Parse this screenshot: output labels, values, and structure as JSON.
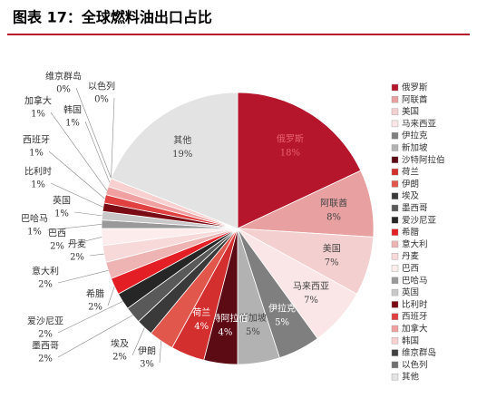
{
  "chart_data": {
    "type": "pie",
    "title": "图表 17：全球燃料油出口占比",
    "categories": [
      "俄罗斯",
      "阿联酋",
      "美国",
      "马来西亚",
      "伊拉克",
      "新加坡",
      "沙特阿拉伯",
      "荷兰",
      "伊朗",
      "埃及",
      "墨西哥",
      "爱沙尼亚",
      "希腊",
      "意大利",
      "丹麦",
      "巴西",
      "巴哈马",
      "英国",
      "比利时",
      "西班牙",
      "加拿大",
      "韩国",
      "维京群岛",
      "以色列",
      "其他"
    ],
    "values": [
      18,
      8,
      7,
      7,
      5,
      5,
      4,
      4,
      3,
      2,
      2,
      2,
      2,
      2,
      2,
      2,
      1,
      1,
      1,
      1,
      1,
      1,
      0,
      0,
      19
    ],
    "value_labels": [
      "18%",
      "8%",
      "7%",
      "7%",
      "5%",
      "5%",
      "4%",
      "4%",
      "3%",
      "2%",
      "2%",
      "2%",
      "2%",
      "2%",
      "2%",
      "2%",
      "1%",
      "1%",
      "1%",
      "1%",
      "1%",
      "1%",
      "0%",
      "0%",
      "19%"
    ],
    "colors": [
      "#b5162b",
      "#e8a0a0",
      "#f4cfcf",
      "#fae6e6",
      "#7f7f7f",
      "#b2b2b2",
      "#5c0a14",
      "#d32f2f",
      "#e2574c",
      "#3a3a3a",
      "#595959",
      "#262626",
      "#e31e24",
      "#eeb4b4",
      "#f7d9d9",
      "#fcecec",
      "#999999",
      "#c8c8c8",
      "#7a0a14",
      "#e04040",
      "#f0a0a0",
      "#f8d0d0",
      "#404040",
      "#707070",
      "#e3e3e3"
    ],
    "legend": "right"
  }
}
